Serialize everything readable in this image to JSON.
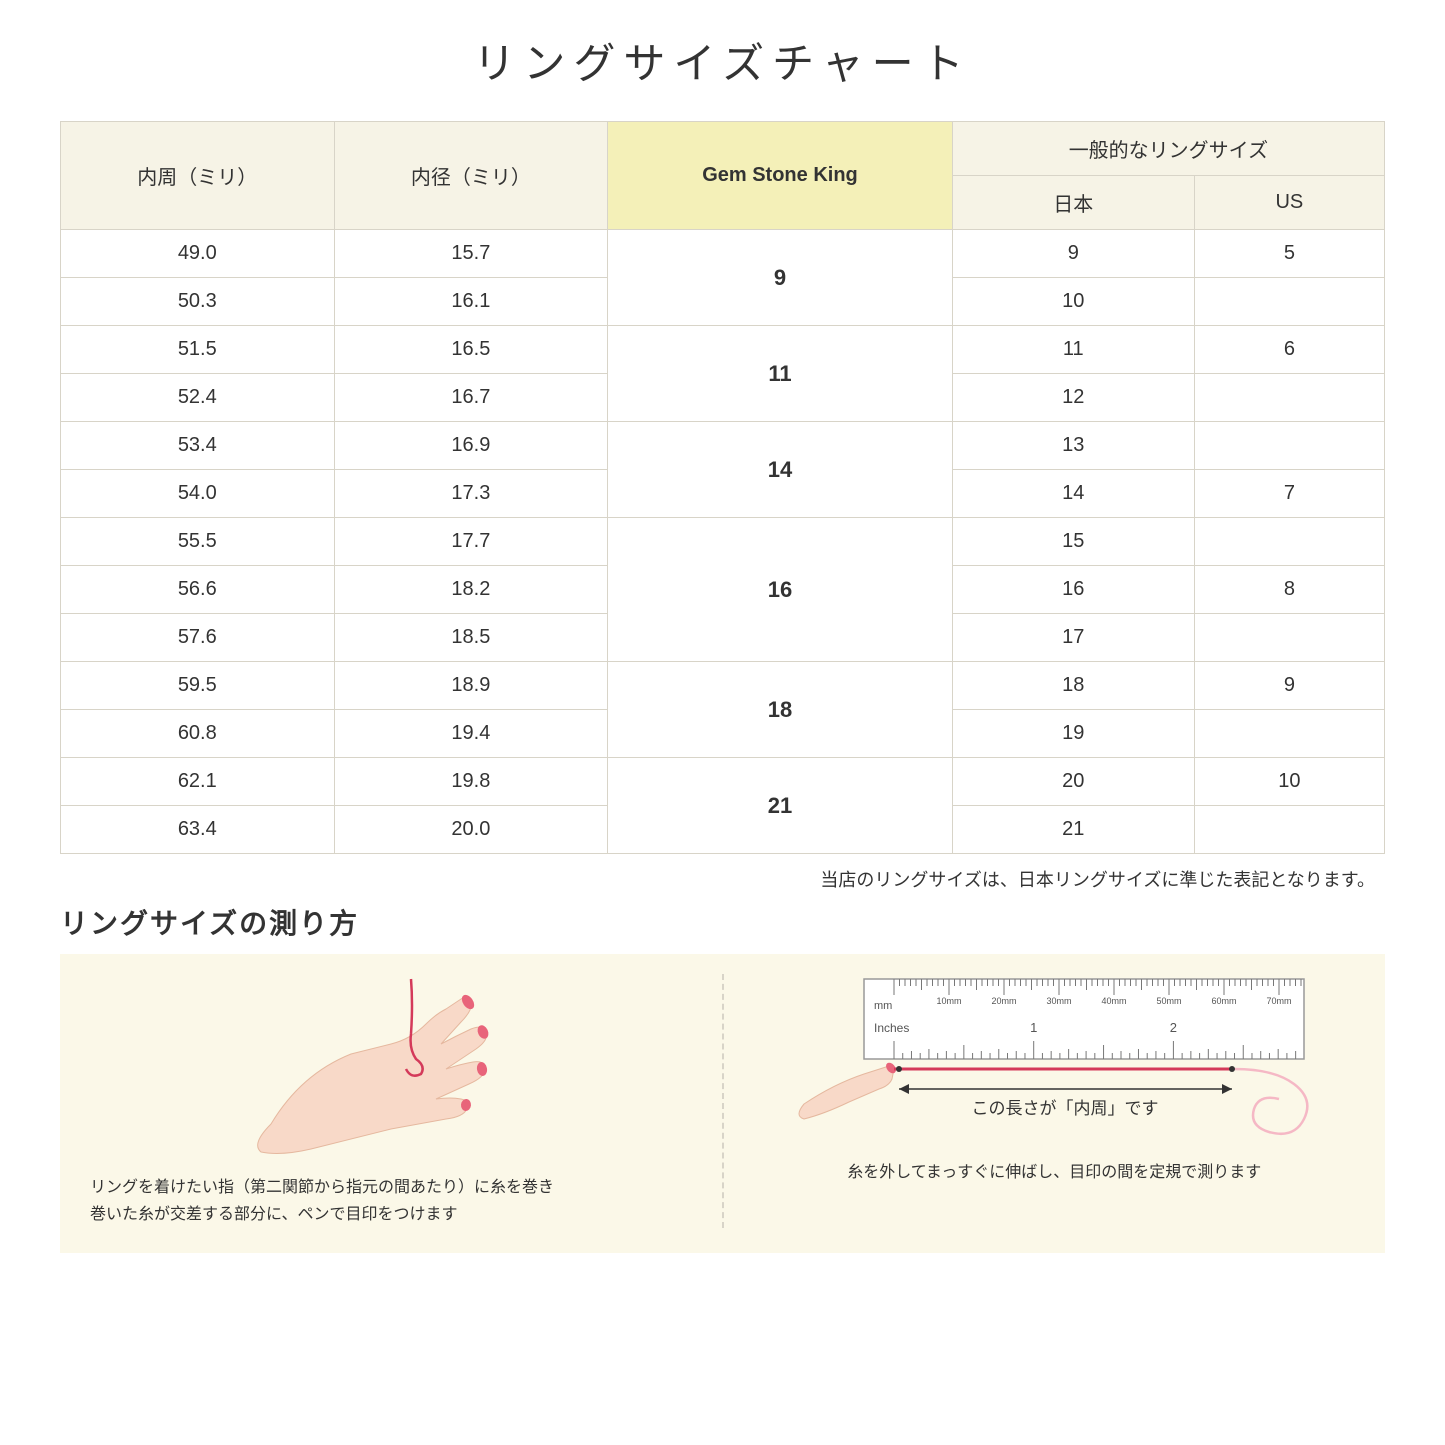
{
  "title": "リングサイズチャート",
  "headers": {
    "circumference": "内周（ミリ）",
    "diameter": "内径（ミリ）",
    "gsk": "Gem Stone King",
    "general": "一般的なリングサイズ",
    "japan": "日本",
    "us": "US"
  },
  "groups": [
    {
      "gsk": "9",
      "rows": [
        {
          "c": "49.0",
          "d": "15.7",
          "jp": "9",
          "us": "5"
        },
        {
          "c": "50.3",
          "d": "16.1",
          "jp": "10",
          "us": ""
        }
      ]
    },
    {
      "gsk": "11",
      "rows": [
        {
          "c": "51.5",
          "d": "16.5",
          "jp": "11",
          "us": "6"
        },
        {
          "c": "52.4",
          "d": "16.7",
          "jp": "12",
          "us": ""
        }
      ]
    },
    {
      "gsk": "14",
      "rows": [
        {
          "c": "53.4",
          "d": "16.9",
          "jp": "13",
          "us": ""
        },
        {
          "c": "54.0",
          "d": "17.3",
          "jp": "14",
          "us": "7"
        }
      ]
    },
    {
      "gsk": "16",
      "rows": [
        {
          "c": "55.5",
          "d": "17.7",
          "jp": "15",
          "us": ""
        },
        {
          "c": "56.6",
          "d": "18.2",
          "jp": "16",
          "us": "8"
        },
        {
          "c": "57.6",
          "d": "18.5",
          "jp": "17",
          "us": ""
        }
      ]
    },
    {
      "gsk": "18",
      "rows": [
        {
          "c": "59.5",
          "d": "18.9",
          "jp": "18",
          "us": "9"
        },
        {
          "c": "60.8",
          "d": "19.4",
          "jp": "19",
          "us": ""
        }
      ]
    },
    {
      "gsk": "21",
      "rows": [
        {
          "c": "62.1",
          "d": "19.8",
          "jp": "20",
          "us": "10"
        },
        {
          "c": "63.4",
          "d": "20.0",
          "jp": "21",
          "us": ""
        }
      ]
    }
  ],
  "note": "当店のリングサイズは、日本リングサイズに準じた表記となります。",
  "subtitle": "リングサイズの測り方",
  "instruction_left": "リングを着けたい指（第二関節から指元の間あたり）に糸を巻き\n巻いた糸が交差する部分に、ペンで目印をつけます",
  "instruction_right_label": "この長さが「内周」です",
  "instruction_right": "糸を外してまっすぐに伸ばし、目印の間を定規で測ります",
  "ruler": {
    "mm_label": "mm",
    "inches_label": "Inches",
    "mm_ticks": [
      "10mm",
      "20mm",
      "30mm",
      "40mm",
      "50mm",
      "60mm",
      "70mm"
    ],
    "inch_ticks": [
      "1",
      "2"
    ]
  },
  "colors": {
    "header_bg": "#f6f3e6",
    "highlight_bg": "#f4f0b8",
    "border": "#d8d4c8",
    "instruction_bg": "#fbf8e8",
    "skin": "#f8d9c8",
    "nail": "#e8647a",
    "thread": "#d43a5a",
    "ruler_body": "#ffffff",
    "ruler_tick": "#777777"
  }
}
